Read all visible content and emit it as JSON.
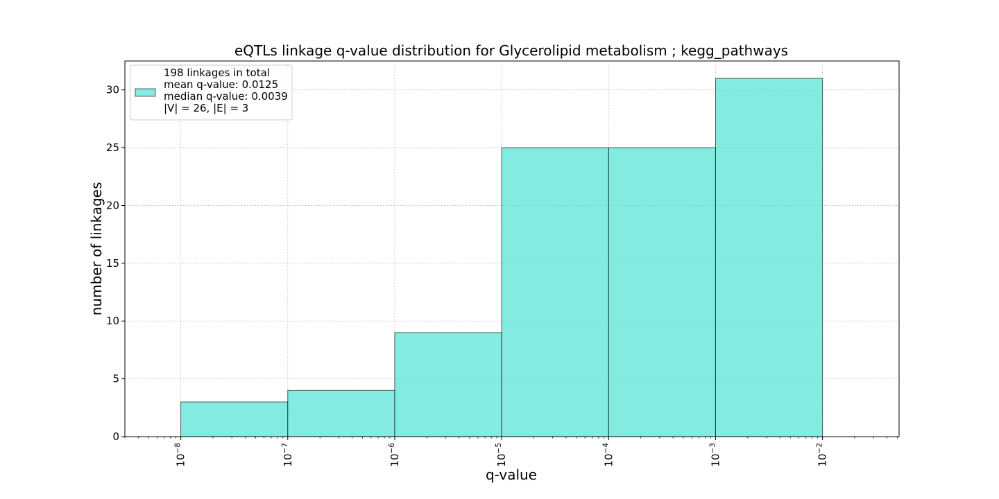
{
  "chart_data": {
    "type": "bar",
    "title": "eQTLs linkage q-value distribution for Glycerolipid metabolism ; kegg_pathways",
    "xlabel": "q-value",
    "ylabel": "number of linkages",
    "x_scale": "log",
    "xlim": [
      3e-09,
      0.052
    ],
    "ylim": [
      0,
      32.5
    ],
    "x_ticks": [
      {
        "value": 1e-08,
        "base": "10",
        "exp": "−8"
      },
      {
        "value": 1e-07,
        "base": "10",
        "exp": "−7"
      },
      {
        "value": 1e-06,
        "base": "10",
        "exp": "−6"
      },
      {
        "value": 1e-05,
        "base": "10",
        "exp": "−5"
      },
      {
        "value": 0.0001,
        "base": "10",
        "exp": "−4"
      },
      {
        "value": 0.001,
        "base": "10",
        "exp": "−3"
      },
      {
        "value": 0.01,
        "base": "10",
        "exp": "−2"
      }
    ],
    "y_ticks": [
      0,
      5,
      10,
      15,
      20,
      25,
      30
    ],
    "bins": [
      {
        "left": 1e-08,
        "right": 1e-07,
        "count": 3
      },
      {
        "left": 1e-07,
        "right": 1e-06,
        "count": 4
      },
      {
        "left": 1e-06,
        "right": 1e-05,
        "count": 9
      },
      {
        "left": 1e-05,
        "right": 0.0001,
        "count": 25
      },
      {
        "left": 0.0001,
        "right": 0.001,
        "count": 25
      },
      {
        "left": 0.001,
        "right": 0.01,
        "count": 31
      }
    ],
    "grid": true,
    "bar_color": "#40e0d0",
    "bar_opacity": 0.65,
    "bar_edge_color": "#000000",
    "legend": {
      "placement": "top-left",
      "lines": [
        "198 linkages in total",
        "mean q-value: 0.0125",
        "median q-value: 0.0039",
        "|V| = 26, |E| = 3"
      ]
    }
  }
}
